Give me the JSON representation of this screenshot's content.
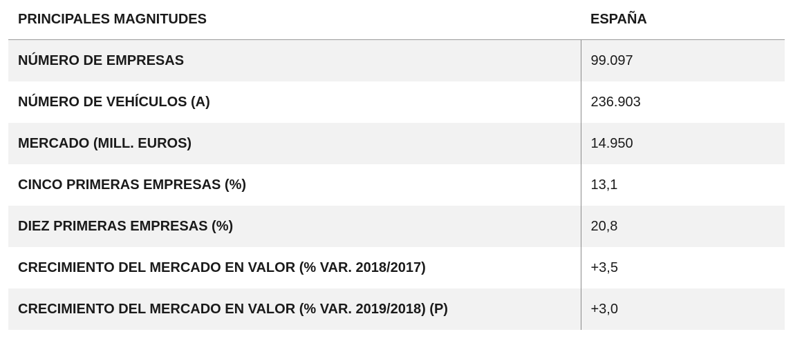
{
  "table": {
    "header": [
      "PRINCIPALES MAGNITUDES",
      "ESPAÑA"
    ],
    "rows": [
      [
        "NÚMERO DE EMPRESAS",
        "99.097"
      ],
      [
        "NÚMERO DE VEHÍCULOS (A)",
        "236.903"
      ],
      [
        "MERCADO (MILL. EUROS)",
        "14.950"
      ],
      [
        "CINCO PRIMERAS EMPRESAS (%)",
        "13,1"
      ],
      [
        "DIEZ PRIMERAS EMPRESAS (%)",
        "20,8"
      ],
      [
        "CRECIMIENTO DEL MERCADO EN VALOR (% VAR. 2018/2017)",
        "+3,5"
      ],
      [
        "CRECIMIENTO DEL MERCADO EN VALOR (% VAR. 2019/2018) (P)",
        "+3,0"
      ]
    ]
  }
}
